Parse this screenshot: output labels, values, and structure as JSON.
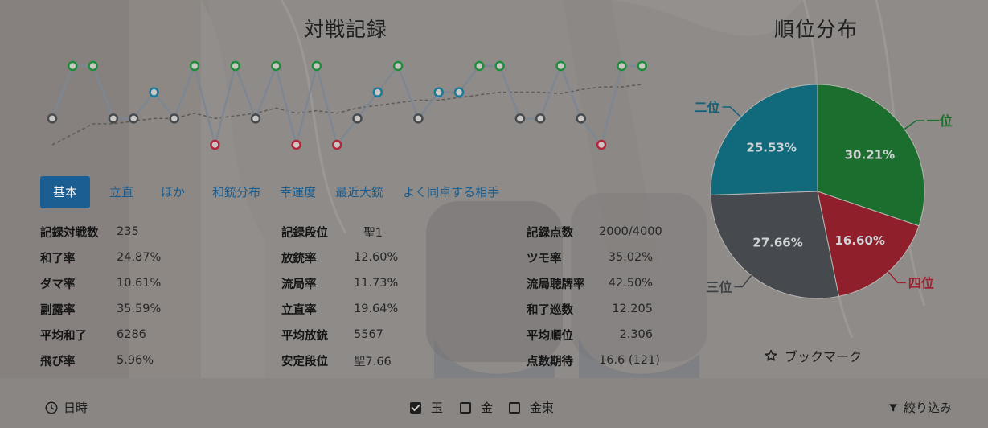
{
  "battle_record": {
    "title": "対戦記録",
    "chart_data": {
      "type": "line",
      "series": [
        {
          "values": [
            3,
            1,
            1,
            3,
            3,
            2,
            3,
            1,
            4,
            1,
            3,
            1,
            4,
            1,
            4,
            3,
            2,
            1,
            3,
            2,
            2,
            1,
            1,
            3,
            3,
            1,
            3,
            4,
            1,
            1
          ]
        },
        {
          "values": [
            4,
            3.6,
            3.2,
            3.2,
            3.1,
            3,
            3,
            2.8,
            3,
            2.9,
            2.8,
            2.6,
            2.8,
            2.7,
            2.8,
            2.6,
            2.5,
            2.4,
            2.3,
            2.3,
            2.2,
            2.1,
            2,
            2,
            2,
            2.05,
            1.9,
            1.8,
            1.8,
            1.7
          ]
        }
      ],
      "ylim": [
        1,
        4
      ],
      "rank_colors": {
        "1": "#1e8c3a",
        "2": "#1b7a99",
        "3": "#454a4f",
        "4": "#b3243a"
      },
      "line_color": "#7c8792",
      "avg_color": "#5e5a57"
    }
  },
  "tabs": [
    {
      "label": "基本",
      "active": true
    },
    {
      "label": "立直"
    },
    {
      "label": "ほか"
    },
    {
      "label": "和銃分布"
    },
    {
      "label": "幸運度"
    },
    {
      "label": "最近大銃"
    },
    {
      "label": "よく同卓する相手"
    }
  ],
  "stats": {
    "col1": [
      {
        "label": "記録対戦数",
        "value": "235"
      },
      {
        "label": "和了率",
        "value": "24.87%"
      },
      {
        "label": "ダマ率",
        "value": "10.61%"
      },
      {
        "label": "副露率",
        "value": "35.59%"
      },
      {
        "label": "平均和了",
        "value": "6286"
      },
      {
        "label": "飛び率",
        "value": "5.96%"
      }
    ],
    "col2": [
      {
        "label": "記録段位",
        "value": "聖1"
      },
      {
        "label": "放銃率",
        "value": "12.60%"
      },
      {
        "label": "流局率",
        "value": "11.73%"
      },
      {
        "label": "立直率",
        "value": "19.64%"
      },
      {
        "label": "平均放銃",
        "value": "5567"
      },
      {
        "label": "安定段位",
        "value": "聖7.66"
      }
    ],
    "col3": [
      {
        "label": "記録点数",
        "value": "2000/4000"
      },
      {
        "label": "ツモ率",
        "value": "35.02%"
      },
      {
        "label": "流局聴牌率",
        "value": "42.50%"
      },
      {
        "label": "和了巡数",
        "value": "12.205"
      },
      {
        "label": "平均順位",
        "value": "2.306"
      },
      {
        "label": "点数期待",
        "value": "16.6 (121)"
      }
    ]
  },
  "rank_distribution": {
    "title": "順位分布",
    "chart_data": {
      "type": "pie",
      "slices": [
        {
          "name": "一位",
          "value": 30.21,
          "label": "30.21%",
          "color": "#1c6e2e"
        },
        {
          "name": "四位",
          "value": 16.6,
          "label": "16.60%",
          "color": "#8f1f2b"
        },
        {
          "name": "三位",
          "value": 27.66,
          "label": "27.66%",
          "color": "#464a4e"
        },
        {
          "name": "二位",
          "value": 25.53,
          "label": "25.53%",
          "color": "#116a7c"
        }
      ],
      "name_colors": {
        "一位": "#1c6e2e",
        "四位": "#9c2130",
        "三位": "#3e4246",
        "二位": "#13627a"
      }
    }
  },
  "bookmark": {
    "icon": "star-outline-icon",
    "label": "ブックマーク"
  },
  "footer": {
    "datetime_label": "日時",
    "filters": [
      {
        "label": "玉",
        "checked": true
      },
      {
        "label": "金",
        "checked": false
      },
      {
        "label": "金東",
        "checked": false
      }
    ],
    "filter_label": "絞り込み"
  }
}
